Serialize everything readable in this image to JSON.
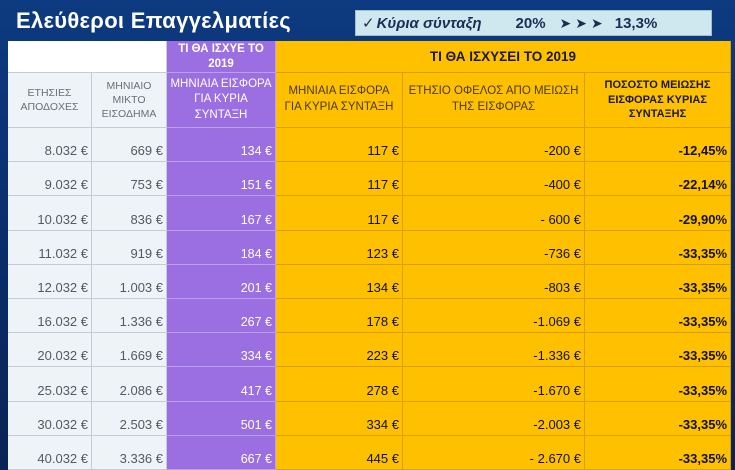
{
  "title": "Ελεύθεροι Επαγγελματίες",
  "banner": {
    "check": "✓",
    "label": "Κύρια σύνταξη",
    "from": "20%",
    "arrows": "➤➤➤",
    "to": "13,3%"
  },
  "header": {
    "group_before": "ΤΙ ΘΑ ΙΣΧΥΕ ΤΟ 2019",
    "group_after": "ΤΙ ΘΑ ΙΣΧΥΣΕΙ ΤΟ 2019",
    "columns": [
      "ΕΤΗΣΙΕΣ ΑΠΟΔΟΧΕΣ",
      "ΜΗΝΙΑΙΟ ΜΙΚΤΟ ΕΙΣΟΔΗΜΑ",
      "ΜΗΝΙΑΙΑ ΕΙΣΦΟΡΑ ΓΙΑ ΚΥΡΙΑ ΣΥΝΤΑΞΗ",
      "ΜΗΝΙΑΙΑ ΕΙΣΦΟΡΑ ΓΙΑ ΚΥΡΙΑ ΣΥΝΤΑΞΗ",
      "ΕΤΗΣΙΟ ΟΦΕΛΟΣ ΑΠΟ ΜΕΙΩΣΗ ΤΗΣ ΕΙΣΦΟΡΑΣ",
      "ΠΟΣΟΣΤΟ ΜΕΙΩΣΗΣ ΕΙΣΦΟΡΑΣ ΚΥΡΙΑΣ ΣΥΝΤΑΞΗΣ"
    ]
  },
  "rows": [
    [
      "8.032 €",
      "669 €",
      "134 €",
      "117 €",
      "-200 €",
      "-12,45%"
    ],
    [
      "9.032 €",
      "753 €",
      "151 €",
      "117 €",
      "-400 €",
      "-22,14%"
    ],
    [
      "10.032 €",
      "836 €",
      "167 €",
      "117 €",
      "- 600 €",
      "-29,90%"
    ],
    [
      "11.032 €",
      "919 €",
      "184 €",
      "123 €",
      "-736 €",
      "-33,35%"
    ],
    [
      "12.032 €",
      "1.003 €",
      "201 €",
      "134 €",
      "-803 €",
      "-33,35%"
    ],
    [
      "16.032 €",
      "1.336 €",
      "267 €",
      "178 €",
      "-1.069 €",
      "-33,35%"
    ],
    [
      "20.032 €",
      "1.669 €",
      "334 €",
      "223 €",
      "-1.336 €",
      "-33,35%"
    ],
    [
      "25.032 €",
      "2.086 €",
      "417 €",
      "278 €",
      "-1.670 €",
      "-33,35%"
    ],
    [
      "30.032 €",
      "2.503 €",
      "501 €",
      "334 €",
      "-2.003 €",
      "-33,35%"
    ],
    [
      "40.032 €",
      "3.336 €",
      "667 €",
      "445 €",
      "- 2.670 €",
      "-33,35%"
    ]
  ]
}
